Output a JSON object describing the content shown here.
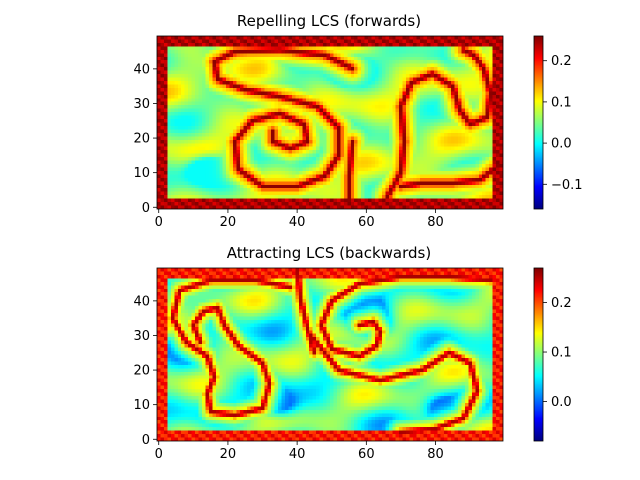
{
  "chart_data": [
    {
      "type": "heatmap",
      "title": "Repelling LCS (forwards)",
      "xlabel": "",
      "ylabel": "",
      "x_range": [
        0,
        99
      ],
      "y_range": [
        0,
        49
      ],
      "xticks": [
        0,
        20,
        40,
        60,
        80
      ],
      "yticks": [
        0,
        10,
        20,
        30,
        40
      ],
      "colorbar": {
        "colormap": "jet",
        "min": -0.16,
        "max": 0.26,
        "ticks": [
          -0.1,
          0.0,
          0.1,
          0.2
        ],
        "tick_labels": [
          "−0.1",
          "0.0",
          "0.1",
          "0.2"
        ]
      },
      "background_value": 0.06,
      "wall_value": 0.24,
      "ridge_value": 0.255,
      "ridges": [
        {
          "name": "left-curl",
          "points": [
            [
              56,
              40
            ],
            [
              48,
              44
            ],
            [
              35,
              45.5
            ],
            [
              22,
              45
            ],
            [
              16,
              42
            ],
            [
              17,
              37
            ],
            [
              25,
              34
            ],
            [
              35,
              32
            ],
            [
              46,
              29
            ],
            [
              52,
              23
            ],
            [
              52,
              15
            ],
            [
              48,
              9
            ],
            [
              40,
              6
            ],
            [
              30,
              6
            ],
            [
              23,
              11
            ],
            [
              22,
              19
            ],
            [
              27,
              25
            ],
            [
              35,
              27
            ],
            [
              42,
              24
            ],
            [
              43,
              19
            ],
            [
              38,
              17
            ],
            [
              33,
              19
            ],
            [
              33,
              22
            ]
          ]
        },
        {
          "name": "right-curl",
          "points": [
            [
              66,
              3
            ],
            [
              70,
              10
            ],
            [
              71,
              19
            ],
            [
              70,
              29
            ],
            [
              73,
              36
            ],
            [
              79,
              38.5
            ],
            [
              85,
              35
            ],
            [
              87,
              28
            ],
            [
              90,
              24
            ],
            [
              95,
              26
            ],
            [
              96,
              33
            ],
            [
              94,
              40
            ],
            [
              91,
              44
            ],
            [
              88,
              45.5
            ]
          ]
        },
        {
          "name": "right-curl-outer",
          "points": [
            [
              70,
              6
            ],
            [
              76,
              7
            ],
            [
              85,
              7
            ],
            [
              93,
              8
            ],
            [
              98,
              12
            ]
          ]
        },
        {
          "name": "vertical-stem",
          "points": [
            [
              55,
              1
            ],
            [
              55,
              9
            ],
            [
              56,
              19
            ]
          ]
        }
      ],
      "lows": [
        {
          "x": 14,
          "y": 11,
          "value": -0.14
        },
        {
          "x": 55,
          "y": 40,
          "value": -0.15
        },
        {
          "x": 37,
          "y": 25,
          "value": -0.02
        },
        {
          "x": 40,
          "y": 44,
          "value": -0.03
        }
      ]
    },
    {
      "type": "heatmap",
      "title": "Attracting LCS (backwards)",
      "xlabel": "",
      "ylabel": "",
      "x_range": [
        0,
        99
      ],
      "y_range": [
        0,
        49
      ],
      "xticks": [
        0,
        20,
        40,
        60,
        80
      ],
      "yticks": [
        0,
        10,
        20,
        30,
        40
      ],
      "colorbar": {
        "colormap": "jet",
        "min": -0.08,
        "max": 0.27,
        "ticks": [
          0.0,
          0.1,
          0.2
        ],
        "tick_labels": [
          "0.0",
          "0.1",
          "0.2"
        ]
      },
      "background_value": 0.08,
      "wall_value": 0.22,
      "ridge_value": 0.255,
      "ridges": [
        {
          "name": "left-curl",
          "points": [
            [
              38,
              44
            ],
            [
              28,
              46
            ],
            [
              15,
              46
            ],
            [
              6,
              43
            ],
            [
              4,
              35
            ],
            [
              8,
              28
            ],
            [
              14,
              24
            ],
            [
              16,
              18
            ],
            [
              14,
              13
            ],
            [
              15,
              8
            ],
            [
              22,
              7
            ],
            [
              30,
              9
            ],
            [
              32,
              16
            ],
            [
              30,
              22
            ],
            [
              23,
              27
            ],
            [
              19,
              33
            ],
            [
              17,
              38
            ],
            [
              13,
              37
            ],
            [
              10,
              33
            ],
            [
              12,
              28
            ]
          ]
        },
        {
          "name": "right-curl",
          "points": [
            [
              96,
              46
            ],
            [
              84,
              47
            ],
            [
              70,
              47
            ],
            [
              58,
              45
            ],
            [
              50,
              40
            ],
            [
              47,
              33
            ],
            [
              50,
              26
            ],
            [
              58,
              24
            ],
            [
              63,
              27
            ],
            [
              64,
              31
            ],
            [
              62,
              34
            ],
            [
              58,
              33
            ]
          ]
        },
        {
          "name": "right-curl-lower",
          "points": [
            [
              44,
              30
            ],
            [
              52,
              20
            ],
            [
              64,
              17
            ],
            [
              76,
              20
            ],
            [
              84,
              25
            ],
            [
              90,
              22
            ],
            [
              92,
              14
            ],
            [
              88,
              6
            ],
            [
              80,
              3
            ],
            [
              70,
              2
            ]
          ]
        },
        {
          "name": "vertical-stem",
          "points": [
            [
              40,
              49
            ],
            [
              41,
              40
            ],
            [
              43,
              32
            ],
            [
              45,
              25
            ]
          ]
        }
      ],
      "lows": [
        {
          "x": 35,
          "y": 10,
          "value": -0.05
        },
        {
          "x": 62,
          "y": 33,
          "value": -0.06
        },
        {
          "x": 82,
          "y": 9,
          "value": -0.04
        },
        {
          "x": 8,
          "y": 27,
          "value": 0.0
        },
        {
          "x": 60,
          "y": 38,
          "value": -0.02
        }
      ]
    }
  ]
}
